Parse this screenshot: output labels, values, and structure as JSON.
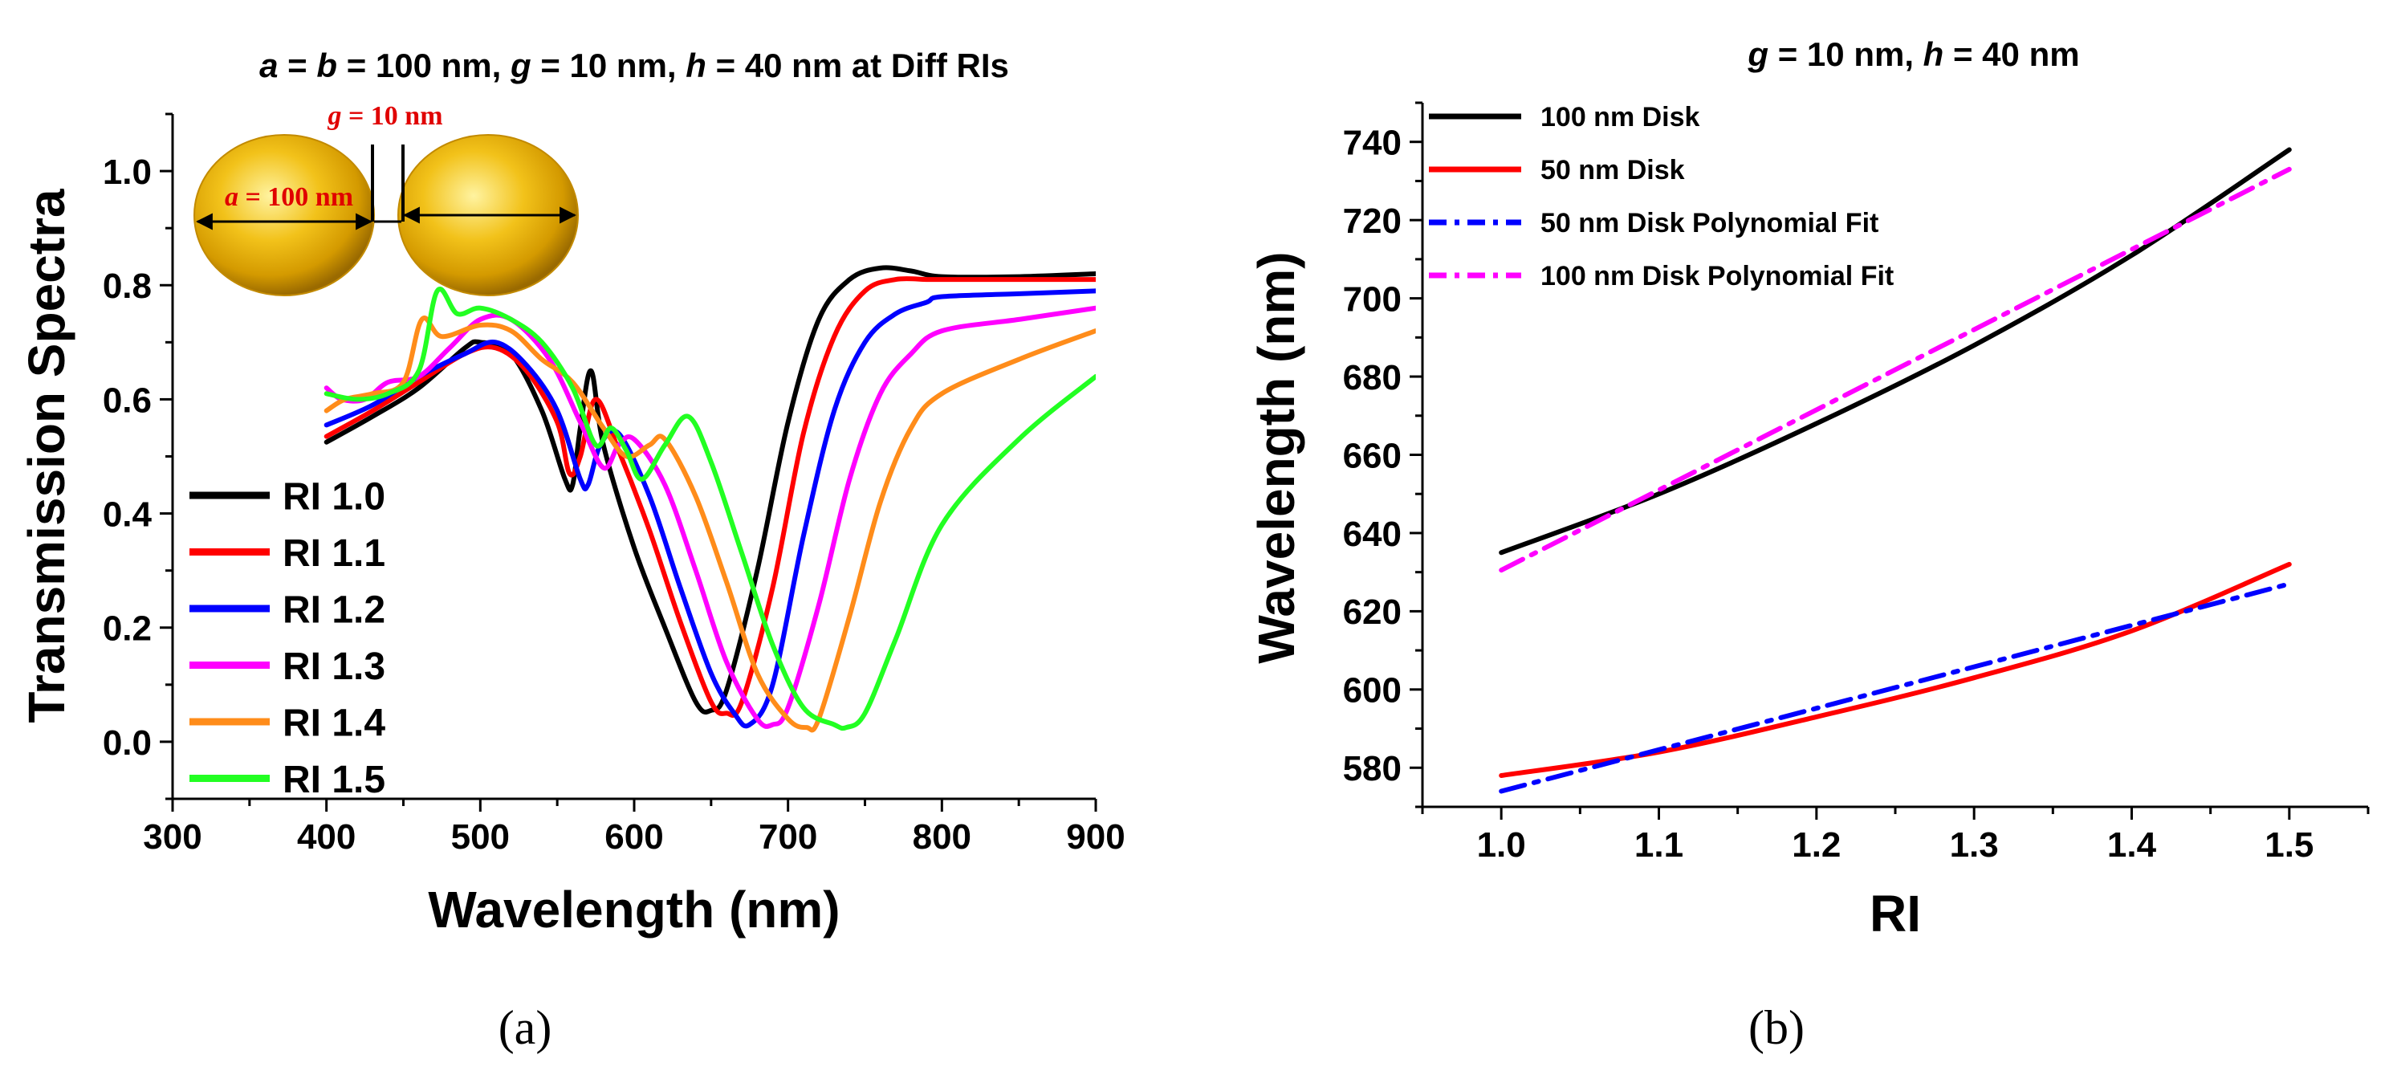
{
  "figure": {
    "caption_a": "(a)",
    "caption_b": "(b)"
  },
  "chart_data": [
    {
      "id": "a",
      "type": "line",
      "title_parts": [
        {
          "t": "a",
          "italic": true
        },
        {
          "t": " = ",
          "italic": false
        },
        {
          "t": "b",
          "italic": true
        },
        {
          "t": " = 100 nm, ",
          "italic": false
        },
        {
          "t": "g",
          "italic": true
        },
        {
          "t": " = 10 nm, ",
          "italic": false
        },
        {
          "t": "h",
          "italic": true
        },
        {
          "t": " = 40 nm at Diff RIs",
          "italic": false
        }
      ],
      "title": "a = b = 100 nm, g = 10 nm, h = 40 nm at Diff RIs",
      "xlabel": "Wavelength (nm)",
      "ylabel": "Transmission Spectra",
      "xlim": [
        300,
        900
      ],
      "ylim": [
        -0.1,
        1.1
      ],
      "xticks": [
        "300",
        "400",
        "500",
        "600",
        "700",
        "800",
        "900"
      ],
      "yticks": [
        "0.0",
        "0.2",
        "0.4",
        "0.6",
        "0.8",
        "1.0"
      ],
      "legend_position": "bottom-left",
      "inset": {
        "gap_symbol": "g",
        "gap_label": " = 10 nm",
        "diameter_symbol": "a",
        "diameter_label": " = 100 nm"
      },
      "series": [
        {
          "name": "RI 1.0",
          "color": "#000000",
          "x": [
            400,
            430,
            460,
            490,
            500,
            520,
            540,
            555,
            560,
            565,
            572,
            580,
            600,
            620,
            640,
            650,
            660,
            680,
            700,
            720,
            740,
            760,
            780,
            800,
            850,
            900
          ],
          "y": [
            0.525,
            0.57,
            0.62,
            0.69,
            0.7,
            0.68,
            0.58,
            0.46,
            0.45,
            0.55,
            0.65,
            0.52,
            0.34,
            0.2,
            0.07,
            0.055,
            0.09,
            0.3,
            0.56,
            0.74,
            0.81,
            0.83,
            0.825,
            0.815,
            0.815,
            0.82
          ]
        },
        {
          "name": "RI 1.1",
          "color": "#ff0000",
          "x": [
            400,
            430,
            460,
            490,
            510,
            530,
            550,
            558,
            565,
            575,
            590,
            610,
            630,
            650,
            660,
            670,
            690,
            710,
            730,
            750,
            770,
            790,
            800,
            850,
            900
          ],
          "y": [
            0.535,
            0.58,
            0.63,
            0.68,
            0.69,
            0.65,
            0.56,
            0.47,
            0.5,
            0.6,
            0.51,
            0.37,
            0.21,
            0.07,
            0.05,
            0.07,
            0.27,
            0.54,
            0.71,
            0.79,
            0.81,
            0.81,
            0.81,
            0.81,
            0.81
          ]
        },
        {
          "name": "RI 1.2",
          "color": "#0000ff",
          "x": [
            400,
            430,
            460,
            490,
            510,
            530,
            550,
            565,
            570,
            578,
            590,
            610,
            630,
            650,
            665,
            675,
            690,
            710,
            730,
            750,
            770,
            790,
            800,
            850,
            900
          ],
          "y": [
            0.555,
            0.59,
            0.64,
            0.68,
            0.7,
            0.66,
            0.58,
            0.46,
            0.45,
            0.52,
            0.54,
            0.43,
            0.27,
            0.12,
            0.05,
            0.03,
            0.1,
            0.36,
            0.58,
            0.7,
            0.75,
            0.77,
            0.78,
            0.785,
            0.79
          ]
        },
        {
          "name": "RI 1.3",
          "color": "#ff00ff",
          "x": [
            400,
            410,
            425,
            440,
            460,
            480,
            500,
            520,
            545,
            565,
            580,
            590,
            600,
            620,
            640,
            660,
            680,
            690,
            700,
            720,
            740,
            760,
            780,
            800,
            850,
            900
          ],
          "y": [
            0.62,
            0.6,
            0.6,
            0.63,
            0.64,
            0.69,
            0.74,
            0.74,
            0.67,
            0.56,
            0.48,
            0.52,
            0.53,
            0.45,
            0.3,
            0.14,
            0.04,
            0.03,
            0.06,
            0.24,
            0.46,
            0.61,
            0.68,
            0.72,
            0.74,
            0.76
          ]
        },
        {
          "name": "RI 1.4",
          "color": "#ff8c1a",
          "x": [
            400,
            412,
            430,
            450,
            462,
            475,
            500,
            520,
            540,
            560,
            580,
            595,
            610,
            620,
            640,
            660,
            680,
            700,
            712,
            720,
            740,
            760,
            780,
            800,
            850,
            900
          ],
          "y": [
            0.58,
            0.6,
            0.61,
            0.63,
            0.74,
            0.71,
            0.73,
            0.72,
            0.67,
            0.63,
            0.55,
            0.5,
            0.52,
            0.53,
            0.43,
            0.28,
            0.12,
            0.04,
            0.025,
            0.04,
            0.22,
            0.42,
            0.55,
            0.61,
            0.67,
            0.72
          ]
        },
        {
          "name": "RI 1.5",
          "color": "#22ff22",
          "x": [
            400,
            420,
            440,
            460,
            472,
            485,
            500,
            520,
            540,
            560,
            575,
            585,
            595,
            605,
            620,
            635,
            650,
            670,
            690,
            710,
            730,
            738,
            750,
            770,
            800,
            850,
            900
          ],
          "y": [
            0.61,
            0.6,
            0.61,
            0.65,
            0.79,
            0.75,
            0.76,
            0.74,
            0.7,
            0.62,
            0.52,
            0.55,
            0.51,
            0.46,
            0.52,
            0.57,
            0.49,
            0.33,
            0.17,
            0.06,
            0.03,
            0.025,
            0.05,
            0.18,
            0.38,
            0.53,
            0.64
          ]
        }
      ]
    },
    {
      "id": "b",
      "type": "line",
      "title_parts": [
        {
          "t": "g",
          "italic": true
        },
        {
          "t": " = 10 nm, ",
          "italic": false
        },
        {
          "t": "h",
          "italic": true
        },
        {
          "t": " = 40 nm",
          "italic": false
        }
      ],
      "title": "g = 10 nm, h = 40 nm",
      "xlabel": "RI",
      "ylabel": "Wavelength (nm)",
      "xlim": [
        0.95,
        1.55
      ],
      "ylim": [
        570,
        750
      ],
      "xticks": [
        "1.0",
        "1.1",
        "1.2",
        "1.3",
        "1.4",
        "1.5"
      ],
      "yticks": [
        "580",
        "600",
        "620",
        "640",
        "660",
        "680",
        "700",
        "720",
        "740"
      ],
      "legend_position": "top-left",
      "series": [
        {
          "name": "100 nm Disk",
          "color": "#000000",
          "dash": "solid",
          "x": [
            1.0,
            1.1,
            1.2,
            1.3,
            1.4,
            1.5
          ],
          "y": [
            635,
            650,
            668,
            688,
            711,
            738
          ]
        },
        {
          "name": "50 nm Disk",
          "color": "#ff0000",
          "dash": "solid",
          "x": [
            1.0,
            1.1,
            1.2,
            1.3,
            1.4,
            1.5
          ],
          "y": [
            578,
            584,
            593,
            603,
            615,
            632
          ]
        },
        {
          "name": "50 nm Disk Polynomial Fit",
          "color": "#0000ff",
          "dash": "dashdot",
          "x": [
            1.0,
            1.5
          ],
          "y": [
            574,
            627
          ]
        },
        {
          "name": "100 nm Disk Polynomial Fit",
          "color": "#ff00ff",
          "dash": "dashdot",
          "x": [
            1.0,
            1.5
          ],
          "y": [
            630.5,
            733
          ]
        }
      ]
    }
  ]
}
